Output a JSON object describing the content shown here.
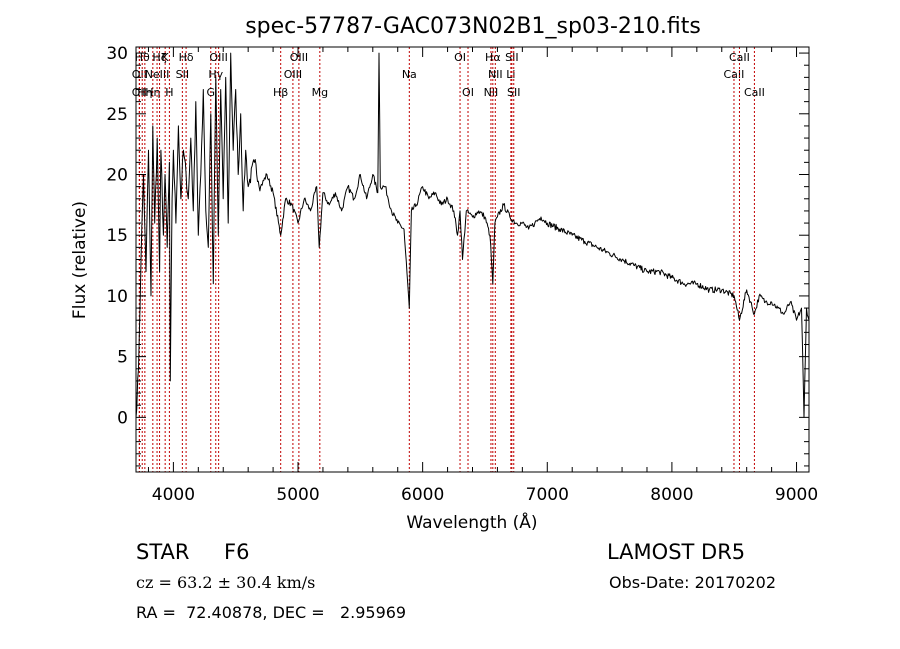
{
  "chart_data": {
    "type": "line",
    "title": "spec-57787-GAC073N02B1_sp03-210.fits",
    "xlabel": "Wavelength (Å)",
    "ylabel": "Flux (relative)",
    "xlim": [
      3700,
      9100
    ],
    "ylim": [
      -4.5,
      30.5
    ],
    "xticks": [
      4000,
      5000,
      6000,
      7000,
      8000,
      9000
    ],
    "yticks": [
      0,
      5,
      10,
      15,
      20,
      25,
      30
    ],
    "grid": false,
    "line_color": "#000000",
    "marker_color": "#c00000",
    "series": [
      {
        "x": [
          3700,
          3720,
          3740,
          3760,
          3780,
          3800,
          3820,
          3835,
          3850,
          3870,
          3889,
          3900,
          3920,
          3933,
          3950,
          3968,
          3975,
          3990,
          4000,
          4020,
          4040,
          4060,
          4080,
          4102,
          4120,
          4140,
          4160,
          4180,
          4200,
          4220,
          4240,
          4260,
          4280,
          4300,
          4320,
          4340,
          4360,
          4380,
          4400,
          4420,
          4440,
          4460,
          4480,
          4500,
          4520,
          4540,
          4560,
          4580,
          4600,
          4650,
          4700,
          4750,
          4800,
          4861,
          4900,
          4950,
          5000,
          5050,
          5100,
          5150,
          5170,
          5200,
          5250,
          5300,
          5350,
          5400,
          5450,
          5500,
          5550,
          5600,
          5640,
          5650,
          5660,
          5700,
          5750,
          5800,
          5850,
          5893,
          5910,
          5950,
          6000,
          6050,
          6100,
          6150,
          6200,
          6250,
          6280,
          6300,
          6320,
          6350,
          6400,
          6450,
          6500,
          6540,
          6563,
          6580,
          6600,
          6650,
          6700,
          6750,
          6800,
          6850,
          6900,
          6950,
          7000,
          7100,
          7200,
          7300,
          7400,
          7500,
          7600,
          7700,
          7800,
          7900,
          8000,
          8100,
          8200,
          8300,
          8400,
          8500,
          8542,
          8600,
          8662,
          8700,
          8750,
          8800,
          8850,
          8900,
          8950,
          9000,
          9040,
          9060,
          9080,
          9100
        ],
        "values": [
          0,
          4,
          13,
          20,
          12,
          22,
          10,
          24,
          16,
          23,
          12,
          22,
          15,
          20,
          14,
          21,
          3,
          18,
          22,
          16,
          24,
          18,
          22,
          20,
          18,
          23,
          17,
          26,
          15,
          20,
          27,
          17,
          14,
          25,
          11,
          28,
          15,
          27,
          18,
          28,
          16,
          30,
          22,
          27,
          20,
          25,
          17,
          22,
          19,
          21,
          19,
          20,
          18.5,
          15,
          18,
          17.5,
          16,
          18,
          17,
          19,
          14,
          18.5,
          17.5,
          18.5,
          17,
          19,
          18,
          20,
          18,
          20,
          18.5,
          30,
          19,
          19,
          17,
          16,
          15.5,
          9,
          17,
          17.5,
          19,
          18,
          18.5,
          17.5,
          18,
          17,
          15,
          17,
          13,
          17,
          16.5,
          17,
          16.5,
          15,
          11,
          16,
          16.5,
          17.5,
          16.5,
          16,
          16,
          15.5,
          16,
          16.5,
          16,
          15.5,
          15,
          14.5,
          14,
          13.5,
          13,
          12.5,
          12,
          12,
          11.5,
          11,
          11,
          10.5,
          10.5,
          10,
          8,
          10.5,
          8.5,
          10,
          9.5,
          9.5,
          9,
          8.5,
          9.5,
          8,
          9,
          0,
          9,
          8
        ]
      }
    ],
    "line_markers": [
      {
        "wavelength": 3727,
        "label": "OII",
        "row": 2
      },
      {
        "wavelength": 3727,
        "label": "OII",
        "row": 1
      },
      {
        "wavelength": 3750,
        "label": "Hθ",
        "row": 0
      },
      {
        "wavelength": 3771,
        "label": "Hη",
        "row": 2
      },
      {
        "wavelength": 3835,
        "label": "Hη",
        "row": 2
      },
      {
        "wavelength": 3869,
        "label": "NeIII",
        "row": 1
      },
      {
        "wavelength": 3889,
        "label": "Hζ",
        "row": 0
      },
      {
        "wavelength": 3934,
        "label": "K",
        "row": 0
      },
      {
        "wavelength": 3968,
        "label": "H",
        "row": 2
      },
      {
        "wavelength": 4072,
        "label": "SII",
        "row": 1
      },
      {
        "wavelength": 4102,
        "label": "Hδ",
        "row": 0
      },
      {
        "wavelength": 4300,
        "label": "G",
        "row": 2
      },
      {
        "wavelength": 4340,
        "label": "Hγ",
        "row": 1
      },
      {
        "wavelength": 4363,
        "label": "OIII",
        "row": 0
      },
      {
        "wavelength": 4861,
        "label": "Hβ",
        "row": 2
      },
      {
        "wavelength": 4959,
        "label": "OIII",
        "row": 1
      },
      {
        "wavelength": 5007,
        "label": "OIII",
        "row": 0
      },
      {
        "wavelength": 5175,
        "label": "Mg",
        "row": 2
      },
      {
        "wavelength": 5893,
        "label": "Na",
        "row": 1
      },
      {
        "wavelength": 6300,
        "label": "OI",
        "row": 0
      },
      {
        "wavelength": 6364,
        "label": "OI",
        "row": 2
      },
      {
        "wavelength": 6548,
        "label": "NII",
        "row": 2
      },
      {
        "wavelength": 6563,
        "label": "Hα",
        "row": 0
      },
      {
        "wavelength": 6583,
        "label": "NII",
        "row": 1
      },
      {
        "wavelength": 6708,
        "label": "Li",
        "row": 1
      },
      {
        "wavelength": 6716,
        "label": "SII",
        "row": 0
      },
      {
        "wavelength": 6731,
        "label": "SII",
        "row": 2
      },
      {
        "wavelength": 8498,
        "label": "CaII",
        "row": 1
      },
      {
        "wavelength": 8542,
        "label": "CaII",
        "row": 0
      },
      {
        "wavelength": 8662,
        "label": "CaII",
        "row": 2
      }
    ]
  },
  "info": {
    "object_class": "STAR",
    "subclass": "F6",
    "survey": "LAMOST DR5",
    "cz_line": "cz = 63.2 ± 30.4 km/s",
    "obs_date_line": "Obs-Date: 20170202",
    "radec_line": "RA =  72.40878, DEC =   2.95969"
  }
}
